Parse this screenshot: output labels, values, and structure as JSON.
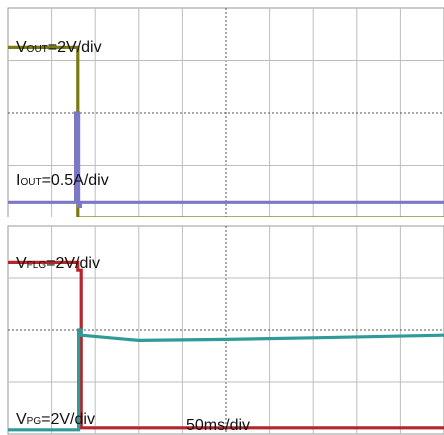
{
  "chart_data": [
    {
      "type": "line",
      "panel": "top",
      "x_unit_per_div": "50ms/div",
      "x_divisions": 10,
      "y_divisions": 4,
      "grid": true,
      "labels": [
        {
          "id": "vout",
          "main": "V",
          "sub": "OUT",
          "rest": "=2V/div"
        },
        {
          "id": "iout",
          "main": "I",
          "sub": "OUT",
          "rest": "=0.5A/div"
        }
      ],
      "series": [
        {
          "id": "vout",
          "color": "#7b7a10",
          "x_div": [
            0,
            1.6,
            1.6,
            10
          ],
          "y_div": [
            3.25,
            3.25,
            0.0,
            0.0
          ]
        },
        {
          "id": "iout",
          "color": "#7c78c8",
          "x_div": [
            0,
            1.55,
            1.55,
            1.62,
            1.62,
            1.66,
            1.66,
            10
          ],
          "y_div": [
            0.3,
            0.3,
            2.0,
            2.0,
            0.22,
            0.22,
            0.3,
            0.3
          ]
        }
      ]
    },
    {
      "type": "line",
      "panel": "bottom",
      "x_unit_per_div": "50ms/div",
      "x_divisions": 10,
      "y_divisions": 4,
      "grid": true,
      "labels": [
        {
          "id": "vflg",
          "main": "V",
          "sub": "FLG",
          "rest": "=2V/div"
        },
        {
          "id": "vpg",
          "main": "V",
          "sub": "PG",
          "rest": "=2V/div"
        },
        {
          "id": "timebase",
          "main": "50ms/div",
          "sub": "",
          "rest": ""
        }
      ],
      "series": [
        {
          "id": "vflg",
          "color": "#b3262b",
          "x_div": [
            0,
            1.6,
            1.6,
            1.68,
            1.68,
            10
          ],
          "y_div": [
            3.3,
            3.3,
            3.15,
            3.15,
            0.12,
            0.12
          ]
        },
        {
          "id": "vpg",
          "color": "#2f9a98",
          "x_div": [
            0,
            1.62,
            1.62,
            1.68,
            1.68,
            3,
            5,
            7,
            10
          ],
          "y_div": [
            0.08,
            0.08,
            2.0,
            2.0,
            1.9,
            1.8,
            1.82,
            1.85,
            1.9
          ]
        }
      ]
    }
  ]
}
